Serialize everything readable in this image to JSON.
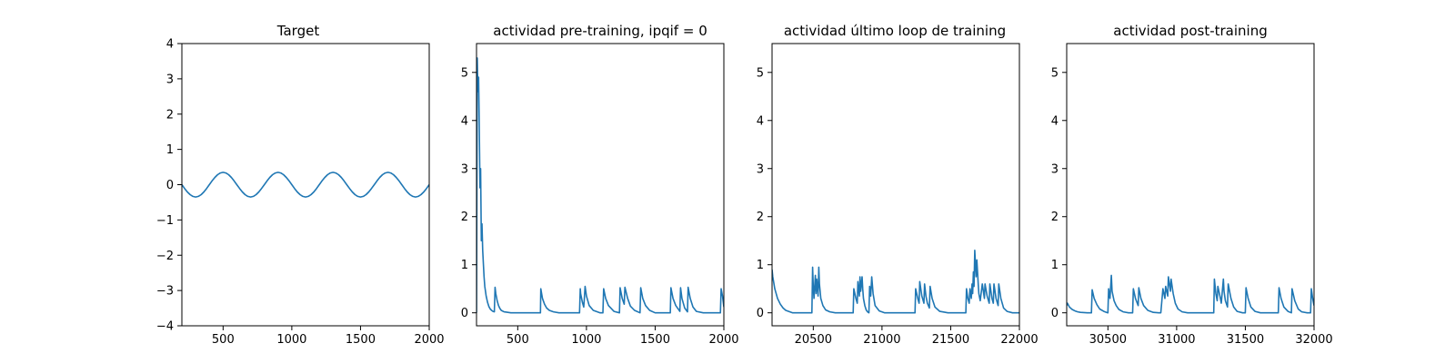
{
  "series_color": "#1f77b4",
  "chart_data": [
    {
      "type": "line",
      "title": "Target",
      "xlabel": "",
      "ylabel": "",
      "xlim": [
        200,
        2000
      ],
      "ylim": [
        -4,
        4
      ],
      "xticks": [
        500,
        1000,
        1500,
        2000
      ],
      "yticks": [
        -4,
        -3,
        -2,
        -1,
        0,
        1,
        2,
        3,
        4
      ],
      "grid": false,
      "series": [
        {
          "x": [
            200,
            220,
            240,
            260,
            280,
            300,
            320,
            340,
            360,
            380,
            400,
            420,
            440,
            460,
            480,
            500,
            520,
            540,
            560,
            580,
            600,
            620,
            640,
            660,
            680,
            700,
            720,
            740,
            760,
            780,
            800,
            820,
            840,
            860,
            880,
            900,
            920,
            940,
            960,
            980,
            1000,
            1020,
            1040,
            1060,
            1080,
            1100,
            1120,
            1140,
            1160,
            1180,
            1200,
            1220,
            1240,
            1260,
            1280,
            1300,
            1320,
            1340,
            1360,
            1380,
            1400,
            1420,
            1440,
            1460,
            1480,
            1500,
            1520,
            1540,
            1560,
            1580,
            1600,
            1620,
            1640,
            1660,
            1680,
            1700,
            1720,
            1740,
            1760,
            1780,
            1800,
            1820,
            1840,
            1860,
            1880,
            1900,
            1920,
            1940,
            1960,
            1980,
            2000
          ],
          "values": [
            0.0,
            -0.108,
            -0.206,
            -0.283,
            -0.333,
            -0.35,
            -0.333,
            -0.283,
            -0.206,
            -0.108,
            0.0,
            0.108,
            0.206,
            0.283,
            0.333,
            0.35,
            0.333,
            0.283,
            0.206,
            0.108,
            0.0,
            -0.108,
            -0.206,
            -0.283,
            -0.333,
            -0.35,
            -0.333,
            -0.283,
            -0.206,
            -0.108,
            0.0,
            0.108,
            0.206,
            0.283,
            0.333,
            0.35,
            0.333,
            0.283,
            0.206,
            0.108,
            0.0,
            -0.108,
            -0.206,
            -0.283,
            -0.333,
            -0.35,
            -0.333,
            -0.283,
            -0.206,
            -0.108,
            0.0,
            0.108,
            0.206,
            0.283,
            0.333,
            0.35,
            0.333,
            0.283,
            0.206,
            0.108,
            0.0,
            -0.108,
            -0.206,
            -0.283,
            -0.333,
            -0.35,
            -0.333,
            -0.283,
            -0.206,
            -0.108,
            0.0,
            0.108,
            0.206,
            0.283,
            0.333,
            0.35,
            0.333,
            0.283,
            0.206,
            0.108,
            0.0,
            -0.108,
            -0.206,
            -0.283,
            -0.333,
            -0.35,
            -0.333,
            -0.283,
            -0.206,
            -0.108,
            0.0
          ]
        }
      ]
    },
    {
      "type": "line",
      "title": "actividad pre-training, ipqif = 0",
      "xlabel": "",
      "ylabel": "",
      "xlim": [
        200,
        2000
      ],
      "ylim": [
        -0.27,
        5.6
      ],
      "xticks": [
        500,
        1000,
        1500,
        2000
      ],
      "yticks": [
        0,
        1,
        2,
        3,
        4,
        5
      ],
      "grid": false,
      "series": [
        {
          "x": [
            200,
            205,
            210,
            215,
            220,
            225,
            230,
            235,
            240,
            245,
            250,
            255,
            260,
            270,
            280,
            290,
            300,
            310,
            320,
            330,
            335,
            340,
            350,
            360,
            370,
            380,
            400,
            450,
            500,
            550,
            600,
            650,
            665,
            668,
            680,
            695,
            710,
            730,
            760,
            800,
            850,
            900,
            950,
            955,
            958,
            970,
            980,
            985,
            990,
            1000,
            1020,
            1050,
            1100,
            1120,
            1125,
            1140,
            1160,
            1200,
            1240,
            1245,
            1260,
            1275,
            1280,
            1300,
            1320,
            1350,
            1390,
            1395,
            1410,
            1430,
            1460,
            1500,
            1550,
            1600,
            1610,
            1615,
            1630,
            1650,
            1680,
            1685,
            1695,
            1715,
            1735,
            1740,
            1755,
            1775,
            1800,
            1850,
            1900,
            1950,
            1975,
            1980,
            1990,
            2000
          ],
          "values": [
            0.0,
            5.3,
            4.6,
            4.9,
            3.9,
            2.6,
            3.0,
            1.5,
            1.85,
            1.3,
            1.0,
            0.75,
            0.55,
            0.35,
            0.22,
            0.13,
            0.08,
            0.05,
            0.03,
            0.02,
            0.53,
            0.4,
            0.25,
            0.15,
            0.09,
            0.05,
            0.02,
            0.0,
            0.0,
            0.0,
            0.0,
            0.0,
            0.0,
            0.5,
            0.3,
            0.18,
            0.1,
            0.05,
            0.02,
            0.0,
            0.0,
            0.0,
            0.0,
            0.5,
            0.4,
            0.22,
            0.12,
            0.3,
            0.55,
            0.35,
            0.15,
            0.05,
            0.0,
            0.0,
            0.5,
            0.3,
            0.15,
            0.03,
            0.0,
            0.52,
            0.3,
            0.18,
            0.53,
            0.3,
            0.14,
            0.05,
            0.0,
            0.52,
            0.3,
            0.15,
            0.05,
            0.0,
            0.0,
            0.0,
            0.0,
            0.52,
            0.3,
            0.15,
            0.03,
            0.52,
            0.3,
            0.1,
            0.02,
            0.53,
            0.3,
            0.12,
            0.03,
            0.0,
            0.0,
            0.0,
            0.0,
            0.5,
            0.35,
            0.12
          ]
        }
      ]
    },
    {
      "type": "line",
      "title": "actividad último loop de training",
      "xlabel": "",
      "ylabel": "",
      "xlim": [
        20200,
        22000
      ],
      "ylim": [
        -0.27,
        5.6
      ],
      "xticks": [
        20500,
        21000,
        21500,
        22000
      ],
      "yticks": [
        0,
        1,
        2,
        3,
        4,
        5
      ],
      "grid": false,
      "series": [
        {
          "x": [
            20200,
            20205,
            20220,
            20240,
            20260,
            20280,
            20300,
            20350,
            20400,
            20450,
            20490,
            20495,
            20500,
            20505,
            20515,
            20520,
            20525,
            20535,
            20540,
            20545,
            20555,
            20570,
            20590,
            20620,
            20660,
            20700,
            20750,
            20790,
            20795,
            20810,
            20820,
            20825,
            20835,
            20840,
            20845,
            20855,
            20860,
            20865,
            20875,
            20885,
            20895,
            20905,
            20910,
            20918,
            20925,
            20935,
            20950,
            20980,
            21020,
            21100,
            21200,
            21240,
            21245,
            21260,
            21270,
            21275,
            21290,
            21305,
            21310,
            21320,
            21330,
            21345,
            21350,
            21365,
            21385,
            21420,
            21480,
            21550,
            21610,
            21615,
            21625,
            21635,
            21640,
            21650,
            21655,
            21660,
            21665,
            21670,
            21675,
            21685,
            21690,
            21700,
            21705,
            21715,
            21730,
            21745,
            21750,
            21765,
            21780,
            21785,
            21800,
            21810,
            21815,
            21830,
            21845,
            21850,
            21865,
            21885,
            21910,
            21950,
            22000
          ],
          "values": [
            0.9,
            0.75,
            0.5,
            0.3,
            0.18,
            0.1,
            0.05,
            0.0,
            0.0,
            0.0,
            0.0,
            0.95,
            0.55,
            0.3,
            0.78,
            0.4,
            0.7,
            0.35,
            0.95,
            0.6,
            0.3,
            0.15,
            0.06,
            0.02,
            0.0,
            0.0,
            0.0,
            0.0,
            0.5,
            0.3,
            0.2,
            0.65,
            0.35,
            0.75,
            0.45,
            0.75,
            0.5,
            0.3,
            0.15,
            0.06,
            0.02,
            0.0,
            0.55,
            0.35,
            0.75,
            0.4,
            0.15,
            0.04,
            0.0,
            0.0,
            0.0,
            0.0,
            0.5,
            0.3,
            0.2,
            0.65,
            0.35,
            0.2,
            0.6,
            0.35,
            0.2,
            0.1,
            0.55,
            0.3,
            0.12,
            0.03,
            0.0,
            0.0,
            0.0,
            0.5,
            0.3,
            0.2,
            0.5,
            0.3,
            0.6,
            0.4,
            0.85,
            0.55,
            1.3,
            0.75,
            1.1,
            0.6,
            0.4,
            0.25,
            0.6,
            0.3,
            0.6,
            0.35,
            0.2,
            0.6,
            0.3,
            0.2,
            0.6,
            0.3,
            0.15,
            0.6,
            0.3,
            0.1,
            0.03,
            0.0,
            0.0
          ]
        }
      ]
    },
    {
      "type": "line",
      "title": "actividad post-training",
      "xlabel": "",
      "ylabel": "",
      "xlim": [
        30200,
        32000
      ],
      "ylim": [
        -0.27,
        5.6
      ],
      "xticks": [
        30500,
        31000,
        31500,
        32000
      ],
      "yticks": [
        0,
        1,
        2,
        3,
        4,
        5
      ],
      "grid": false,
      "series": [
        {
          "x": [
            30200,
            30205,
            30220,
            30240,
            30260,
            30280,
            30300,
            30350,
            30380,
            30385,
            30400,
            30420,
            30440,
            30470,
            30490,
            30500,
            30505,
            30515,
            30525,
            30530,
            30545,
            30560,
            30580,
            30610,
            30650,
            30680,
            30685,
            30700,
            30720,
            30725,
            30740,
            30760,
            30790,
            30830,
            30870,
            30885,
            30900,
            30915,
            30920,
            30935,
            30940,
            30955,
            30960,
            30975,
            30990,
            31010,
            31040,
            31080,
            31130,
            31180,
            31230,
            31270,
            31275,
            31285,
            31295,
            31300,
            31315,
            31325,
            31340,
            31345,
            31355,
            31370,
            31375,
            31395,
            31415,
            31440,
            31480,
            31500,
            31505,
            31520,
            31540,
            31570,
            31610,
            31660,
            31710,
            31740,
            31745,
            31760,
            31780,
            31810,
            31835,
            31840,
            31860,
            31885,
            31910,
            31950,
            31975,
            31980,
            31990,
            32000
          ],
          "values": [
            0.15,
            0.2,
            0.12,
            0.07,
            0.04,
            0.02,
            0.01,
            0.0,
            0.0,
            0.48,
            0.3,
            0.17,
            0.08,
            0.03,
            0.01,
            0.0,
            0.5,
            0.3,
            0.78,
            0.45,
            0.25,
            0.15,
            0.07,
            0.02,
            0.0,
            0.0,
            0.5,
            0.3,
            0.15,
            0.52,
            0.3,
            0.15,
            0.05,
            0.01,
            0.0,
            0.0,
            0.5,
            0.3,
            0.55,
            0.35,
            0.75,
            0.45,
            0.7,
            0.4,
            0.2,
            0.08,
            0.02,
            0.0,
            0.0,
            0.0,
            0.0,
            0.0,
            0.7,
            0.4,
            0.25,
            0.55,
            0.35,
            0.2,
            0.7,
            0.45,
            0.25,
            0.12,
            0.6,
            0.3,
            0.12,
            0.03,
            0.0,
            0.0,
            0.52,
            0.3,
            0.12,
            0.03,
            0.0,
            0.0,
            0.0,
            0.0,
            0.52,
            0.3,
            0.12,
            0.03,
            0.0,
            0.5,
            0.25,
            0.08,
            0.02,
            0.0,
            0.0,
            0.5,
            0.3,
            0.15
          ]
        }
      ]
    }
  ]
}
